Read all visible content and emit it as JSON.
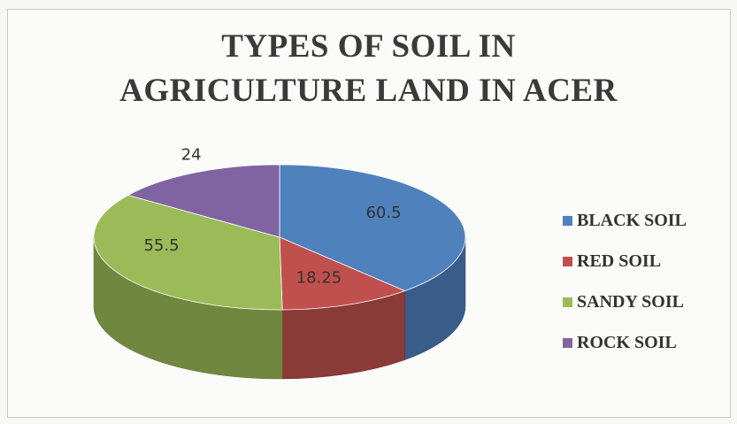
{
  "title_line1": "TYPES OF SOIL IN",
  "title_line2": "AGRICULTURE LAND IN ACER",
  "chart_data": {
    "type": "pie",
    "title": "TYPES OF SOIL IN AGRICULTURE LAND IN ACER",
    "labels": [
      "BLACK SOIL",
      "RED SOIL",
      "SANDY SOIL",
      "ROCK SOIL"
    ],
    "values": [
      60.5,
      18.25,
      55.5,
      24
    ],
    "value_labels": [
      "60.5",
      "18.25",
      "55.5",
      "24"
    ],
    "colors": [
      "#4f81bd",
      "#c0504d",
      "#9bbb59",
      "#8064a2"
    ],
    "legend_position": "right",
    "style": "3d"
  }
}
